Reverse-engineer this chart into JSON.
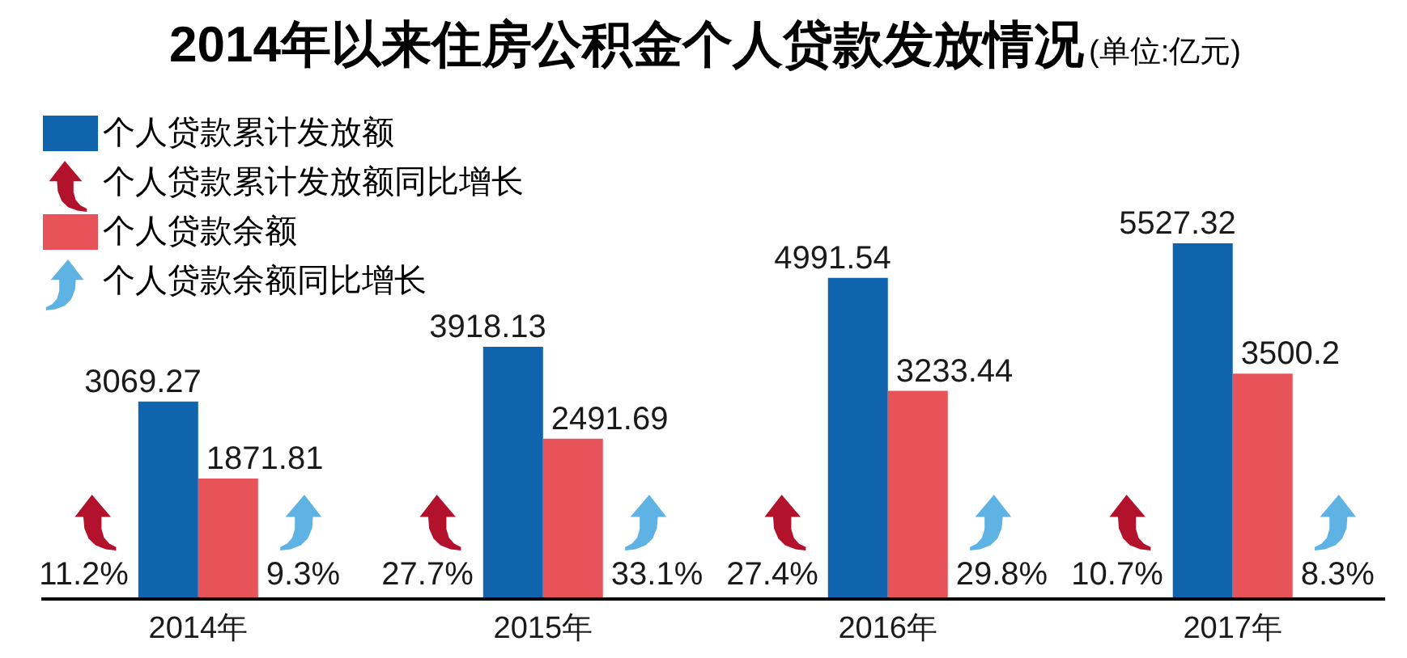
{
  "chart_data": {
    "type": "bar",
    "title": "2014年以来住房公积金个人贷款发放情况",
    "subtitle": "(单位:亿元)",
    "categories": [
      "2014年",
      "2015年",
      "2016年",
      "2017年"
    ],
    "series": [
      {
        "name": "个人贷款累计发放额",
        "color": "#0f64ad",
        "values": [
          3069.27,
          3918.13,
          4991.54,
          5527.32
        ]
      },
      {
        "name": "个人贷款余额",
        "color": "#e8535a",
        "values": [
          1871.81,
          2491.69,
          3233.44,
          3500.2
        ]
      }
    ],
    "annotations": [
      "个人贷款累计发放额同比增长",
      "个人贷款余额同比增长",
      {
        "text": "11.2%",
        "x": "2014年"
      },
      {
        "text": "9.3%",
        "x": "2014年"
      },
      {
        "text": "27.7%",
        "x": "2015年"
      },
      {
        "text": "33.1%",
        "x": "2015年"
      },
      {
        "text": "27.4%",
        "x": "2016年"
      },
      {
        "text": "29.8%",
        "x": "2016年"
      },
      {
        "text": "10.7%",
        "x": "2017年"
      },
      {
        "text": "8.3%",
        "x": "2017年"
      }
    ],
    "data_labels": true,
    "legend": "top left",
    "grid": false
  }
}
